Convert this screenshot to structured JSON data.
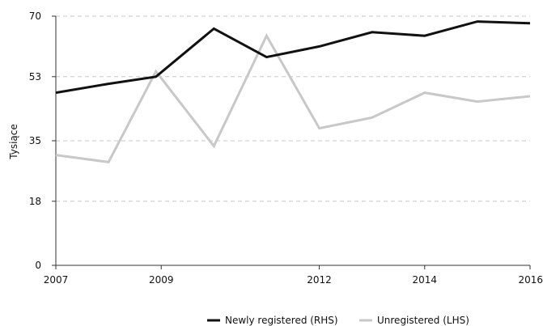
{
  "chart_data": {
    "type": "line",
    "title": "",
    "xlabel": "",
    "ylabel": "Tysiące",
    "x_ticks": [
      "2007",
      "2009",
      "2012",
      "2014",
      "2016"
    ],
    "y_ticks": [
      "0",
      "18",
      "35",
      "53",
      "70"
    ],
    "xlim": [
      2007,
      2016
    ],
    "ylim": [
      0,
      70
    ],
    "grid": "horizontal dashed",
    "legend_position": "bottom",
    "series": [
      {
        "name": "Newly registered (RHS)",
        "color": "#111111",
        "x": [
          2007,
          2008,
          2008.9,
          2010,
          2011,
          2012,
          2013,
          2014,
          2015,
          2016
        ],
        "values": [
          48.5,
          51,
          53,
          66.5,
          58.5,
          61.5,
          65.5,
          64.5,
          68.5,
          68
        ]
      },
      {
        "name": "Unregistered (LHS)",
        "color": "#c8c8c8",
        "x": [
          2007,
          2008,
          2008.9,
          2010,
          2011,
          2012,
          2013,
          2014,
          2015,
          2016
        ],
        "values": [
          31,
          29,
          54.5,
          33.5,
          64.5,
          38.5,
          41.5,
          48.5,
          46,
          47.5
        ]
      }
    ]
  }
}
